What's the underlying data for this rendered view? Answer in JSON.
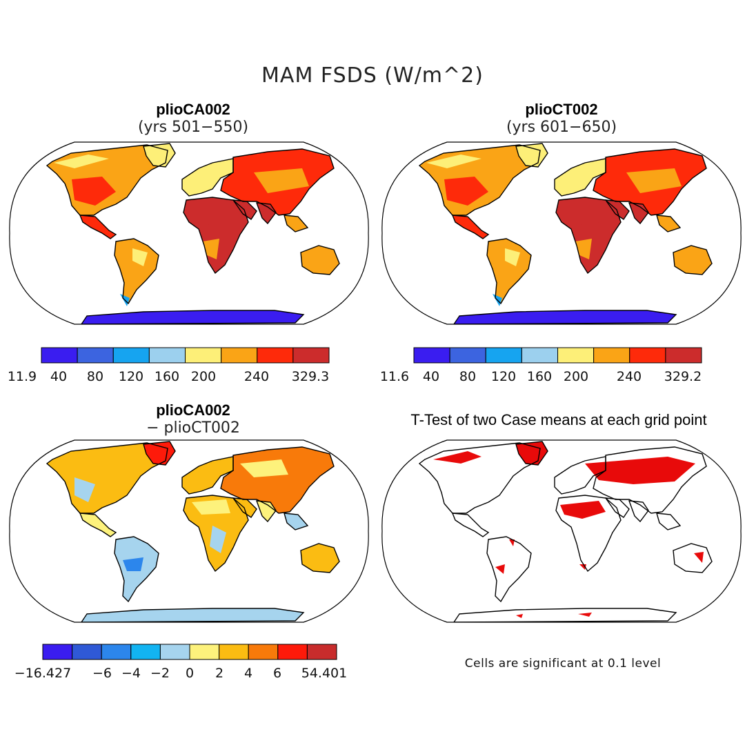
{
  "figure": {
    "title": "MAM FSDS (W/m^2)",
    "note": "Cells are significant at 0.1 level"
  },
  "panels": [
    {
      "title": "plioCA002",
      "subtitle": "(yrs 501−550)"
    },
    {
      "title": "plioCT002",
      "subtitle": "(yrs 601−650)"
    },
    {
      "title": "plioCA002",
      "subtitle": "− plioCT002"
    },
    {
      "title": "T-Test of two Case means at each grid point",
      "subtitle": ""
    }
  ],
  "colorbars": [
    {
      "colors": [
        "#3a1df0",
        "#3c64e0",
        "#16a4f0",
        "#9cd0ee",
        "#fdef78",
        "#faa416",
        "#fe2a0a",
        "#cc2c2c"
      ],
      "labels": [
        "11.9",
        "40",
        "80",
        "120",
        "160",
        "200",
        "240",
        "329.3"
      ]
    },
    {
      "colors": [
        "#3a1df0",
        "#3c64e0",
        "#16a4f0",
        "#9cd0ee",
        "#fdef78",
        "#faa416",
        "#fe2a0a",
        "#cc2c2c"
      ],
      "labels": [
        "11.6",
        "40",
        "80",
        "120",
        "160",
        "200",
        "240",
        "329.2"
      ]
    },
    {
      "colors": [
        "#3a1df0",
        "#2f59d6",
        "#2c86ec",
        "#12b4f2",
        "#a6d4ee",
        "#fdf27c",
        "#fbbc12",
        "#f87a0a",
        "#fe1a0a",
        "#c82c2c"
      ],
      "labels": [
        "−16.427",
        "−6",
        "−4",
        "−2",
        "0",
        "2",
        "4",
        "6",
        "54.401"
      ]
    }
  ]
}
